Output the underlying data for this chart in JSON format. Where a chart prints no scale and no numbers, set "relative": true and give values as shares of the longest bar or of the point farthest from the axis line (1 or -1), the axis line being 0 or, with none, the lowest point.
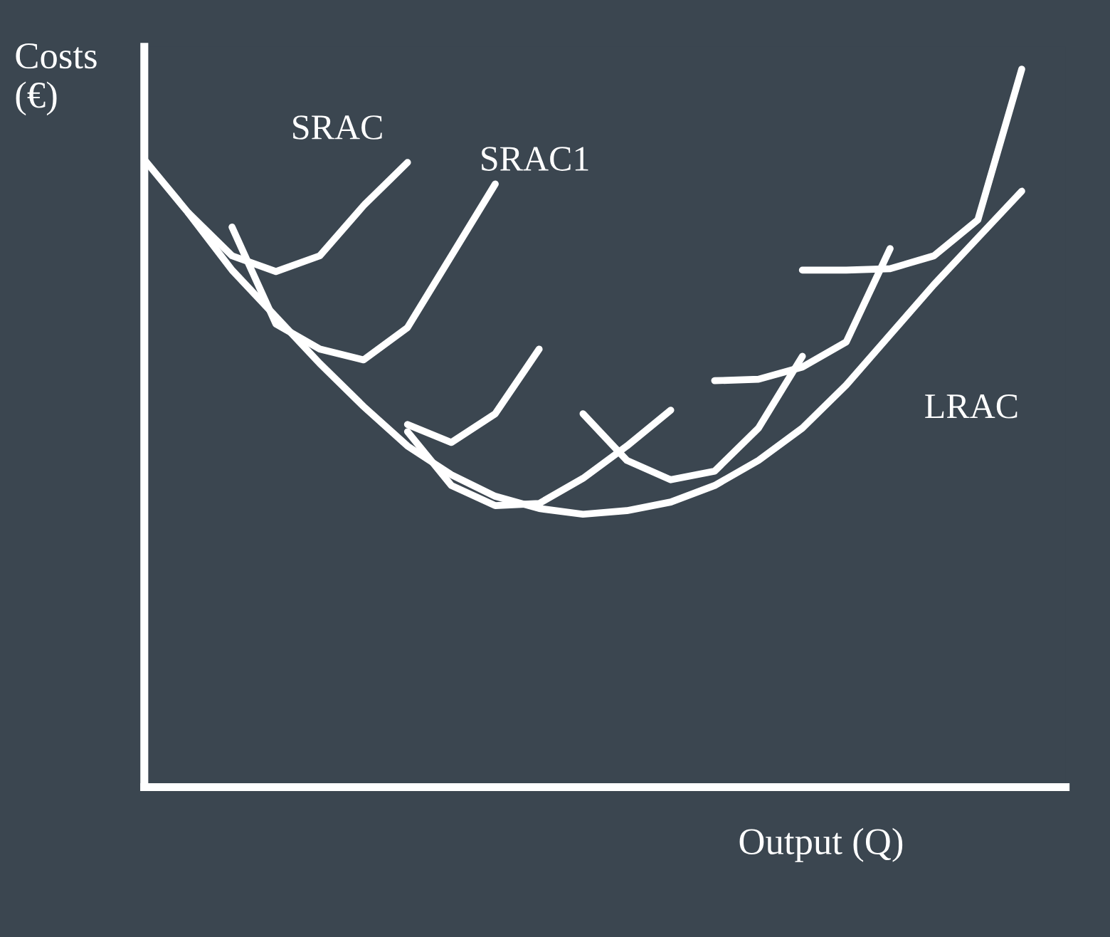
{
  "chart_data": {
    "type": "line",
    "relative": true,
    "xlabel": "Output (Q)",
    "ylabel": "Costs\n(€)",
    "legend": false,
    "marker": "none",
    "line_style": "solid",
    "categories": [
      null,
      null,
      null,
      null,
      null,
      null,
      null,
      null,
      null,
      null,
      null,
      null,
      null,
      null,
      null,
      null,
      null,
      null,
      null,
      null,
      null
    ],
    "series": [
      {
        "name": "LRAC",
        "color": "#ffffff",
        "values": [
          0.874,
          0.8,
          0.72,
          0.655,
          0.59,
          0.53,
          0.475,
          0.435,
          0.405,
          0.388,
          0.38,
          0.385,
          0.397,
          0.42,
          0.455,
          0.5,
          0.56,
          0.63,
          0.7,
          0.765,
          0.83
        ]
      },
      {
        "name": "SRAC",
        "color": "#ffffff",
        "values": [
          null,
          0.8,
          0.74,
          0.718,
          0.74,
          0.81,
          0.87,
          null,
          null,
          null,
          null,
          null,
          null,
          null,
          null,
          null,
          null,
          null,
          null,
          null,
          null
        ]
      },
      {
        "name": "SRAC1",
        "color": "#ffffff",
        "values": [
          null,
          null,
          0.78,
          0.645,
          0.61,
          0.595,
          0.64,
          0.74,
          0.84,
          null,
          null,
          null,
          null,
          null,
          null,
          null,
          null,
          null,
          null,
          null,
          null
        ]
      },
      {
        "color": "#ffffff",
        "values": [
          null,
          null,
          null,
          null,
          null,
          null,
          0.505,
          0.48,
          0.52,
          0.61,
          null,
          null,
          null,
          null,
          null,
          null,
          null,
          null,
          null,
          null,
          null
        ]
      },
      {
        "color": "#ffffff",
        "values": [
          null,
          null,
          null,
          null,
          null,
          null,
          0.495,
          0.42,
          0.392,
          0.395,
          0.43,
          0.475,
          0.525,
          null,
          null,
          null,
          null,
          null,
          null,
          null,
          null
        ]
      },
      {
        "color": "#ffffff",
        "values": [
          null,
          null,
          null,
          null,
          null,
          null,
          null,
          null,
          null,
          null,
          0.52,
          0.455,
          0.428,
          0.44,
          0.5,
          0.6,
          null,
          null,
          null,
          null,
          null
        ]
      },
      {
        "color": "#ffffff",
        "values": [
          null,
          null,
          null,
          null,
          null,
          null,
          null,
          null,
          null,
          null,
          null,
          null,
          null,
          0.566,
          0.568,
          0.585,
          0.62,
          0.75,
          null,
          null,
          null
        ]
      },
      {
        "color": "#ffffff",
        "values": [
          null,
          null,
          null,
          null,
          null,
          null,
          null,
          null,
          null,
          null,
          null,
          null,
          null,
          null,
          null,
          0.72,
          0.72,
          0.722,
          0.74,
          0.79,
          1.0
        ]
      }
    ]
  }
}
